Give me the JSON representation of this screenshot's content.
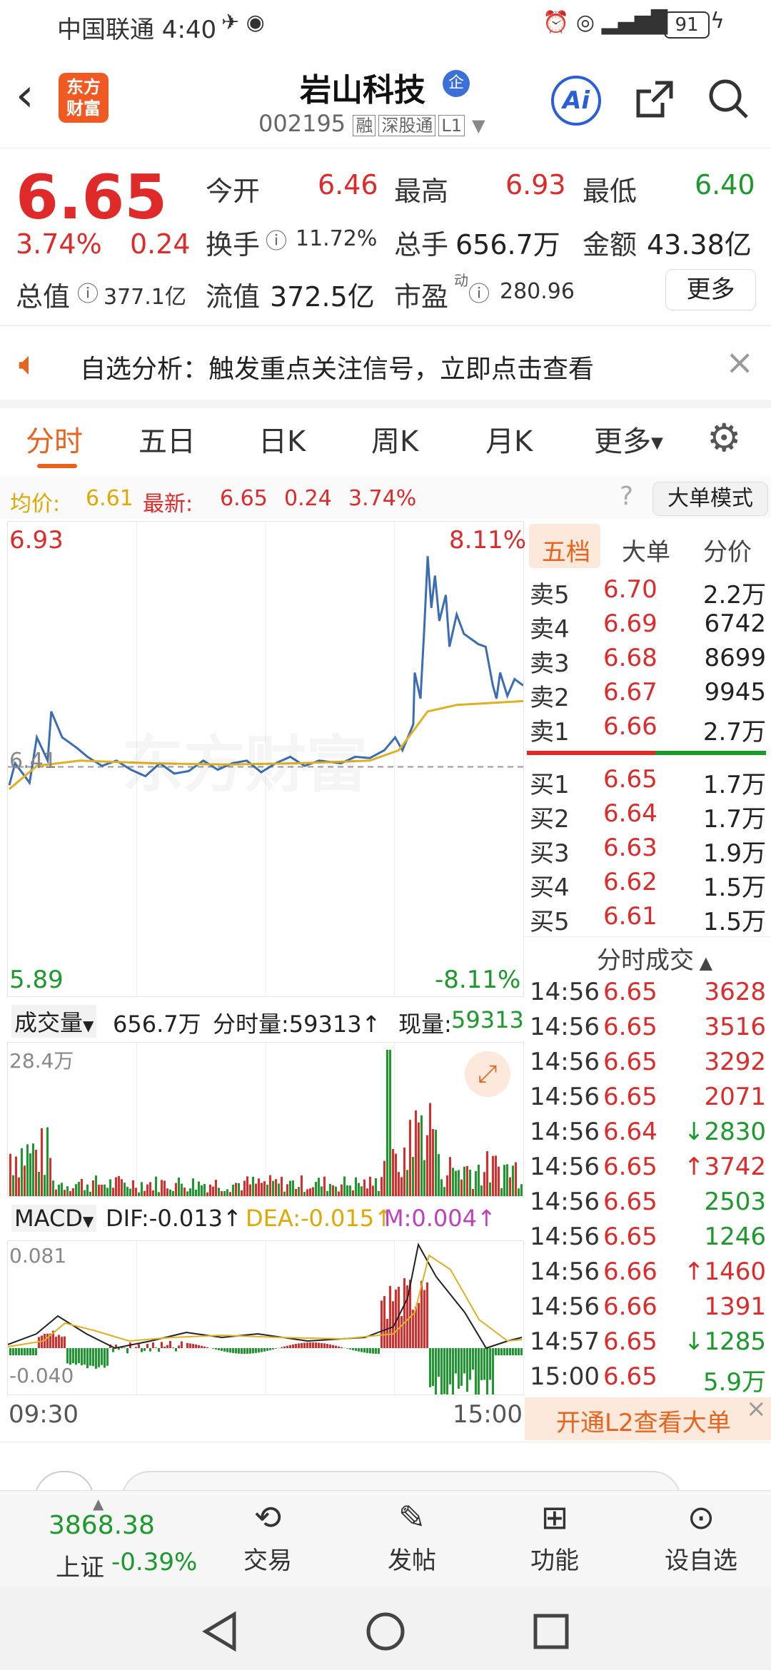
{
  "status_bar": {
    "carrier_time": "中国联通 4:40",
    "battery": "91"
  },
  "header": {
    "logo_text_line1": "东方",
    "logo_text_line2": "财富",
    "stock_name": "岩山科技",
    "stock_code": "002195",
    "tags": [
      "融",
      "深股通",
      "L1"
    ],
    "ai_label": "Ai"
  },
  "quote": {
    "price": "6.65",
    "change_pct": "3.74%",
    "change_abs": "0.24",
    "open_label": "今开",
    "open": "6.46",
    "high_label": "最高",
    "high": "6.93",
    "low_label": "最低",
    "low": "6.40",
    "turnover_label": "换手",
    "turnover": "11.72%",
    "volume_label": "总手",
    "volume": "656.7万",
    "amount_label": "金额",
    "amount": "43.38亿",
    "mktcap_label": "总值",
    "mktcap": "377.1亿",
    "float_label": "流值",
    "float": "372.5亿",
    "pe_label": "市盈",
    "pe_sup": "动",
    "pe": "280.96",
    "more_button": "更多"
  },
  "banner": {
    "text": "自选分析：触发重点关注信号，立即点击查看"
  },
  "tabs": [
    "分时",
    "五日",
    "日K",
    "周K",
    "月K",
    "更多"
  ],
  "active_tab": 0,
  "chart_info": {
    "avg_label": "均价:",
    "avg_value": "6.61",
    "latest_label": "最新:",
    "latest_value": "6.65",
    "latest_change": "0.24",
    "latest_pct": "3.74%",
    "big_order_mode": "大单模式"
  },
  "chart_labels": {
    "top_price": "6.93",
    "top_pct": "8.11%",
    "mid_price": "6.41",
    "bottom_price": "5.89",
    "bottom_pct": "-8.11%",
    "watermark": "东方财富"
  },
  "volume_info": {
    "label": "成交量",
    "total": "656.7万",
    "period_label": "分时量:59313↑",
    "current_label": "现量:",
    "current_value": "59313",
    "max_label": "28.4万"
  },
  "macd_info": {
    "label": "MACD",
    "dif": "DIF:-0.013↑",
    "dea": "DEA:-0.015↑",
    "m": "M:0.004↑",
    "top": "0.081",
    "bottom": "-0.040"
  },
  "time_axis": {
    "start": "09:30",
    "end": "15:00"
  },
  "order_book": {
    "tabs": [
      "五档",
      "大单",
      "分价"
    ],
    "asks": [
      {
        "label": "卖5",
        "price": "6.70",
        "vol": "2.2万"
      },
      {
        "label": "卖4",
        "price": "6.69",
        "vol": "6742"
      },
      {
        "label": "卖3",
        "price": "6.68",
        "vol": "8699"
      },
      {
        "label": "卖2",
        "price": "6.67",
        "vol": "9945"
      },
      {
        "label": "卖1",
        "price": "6.66",
        "vol": "2.7万"
      }
    ],
    "bids": [
      {
        "label": "买1",
        "price": "6.65",
        "vol": "1.7万"
      },
      {
        "label": "买2",
        "price": "6.64",
        "vol": "1.7万"
      },
      {
        "label": "买3",
        "price": "6.63",
        "vol": "1.9万"
      },
      {
        "label": "买4",
        "price": "6.62",
        "vol": "1.5万"
      },
      {
        "label": "买5",
        "price": "6.61",
        "vol": "1.5万"
      }
    ]
  },
  "trades": {
    "title": "分时成交",
    "rows": [
      {
        "time": "14:56",
        "price": "6.65",
        "vol": "3628",
        "color": "red"
      },
      {
        "time": "14:56",
        "price": "6.65",
        "vol": "3516",
        "color": "red"
      },
      {
        "time": "14:56",
        "price": "6.65",
        "vol": "3292",
        "color": "red"
      },
      {
        "time": "14:56",
        "price": "6.65",
        "vol": "2071",
        "color": "red"
      },
      {
        "time": "14:56",
        "price": "6.64",
        "vol": "↓2830",
        "color": "green"
      },
      {
        "time": "14:56",
        "price": "6.65",
        "vol": "↑3742",
        "color": "red"
      },
      {
        "time": "14:56",
        "price": "6.65",
        "vol": "2503",
        "color": "green"
      },
      {
        "time": "14:56",
        "price": "6.65",
        "vol": "1246",
        "color": "green"
      },
      {
        "time": "14:56",
        "price": "6.66",
        "vol": "↑1460",
        "color": "red"
      },
      {
        "time": "14:56",
        "price": "6.66",
        "vol": "1391",
        "color": "red"
      },
      {
        "time": "14:57",
        "price": "6.65",
        "vol": "↓1285",
        "color": "green"
      },
      {
        "time": "15:00",
        "price": "6.65",
        "vol": "5.9万",
        "color": "green"
      }
    ],
    "l2_button": "开通L2查看大单"
  },
  "bottom_bar": {
    "index_value": "3868.38",
    "index_name": "上证",
    "index_pct": "-0.39%",
    "items": [
      "交易",
      "发帖",
      "功能",
      "设自选"
    ]
  },
  "colors": {
    "up": "#e02a2a",
    "down": "#1a9a2a",
    "accent": "#e8641e",
    "brand_blue": "#2b5fd9",
    "avg_line": "#e0b020",
    "price_line": "#3a6db5"
  }
}
